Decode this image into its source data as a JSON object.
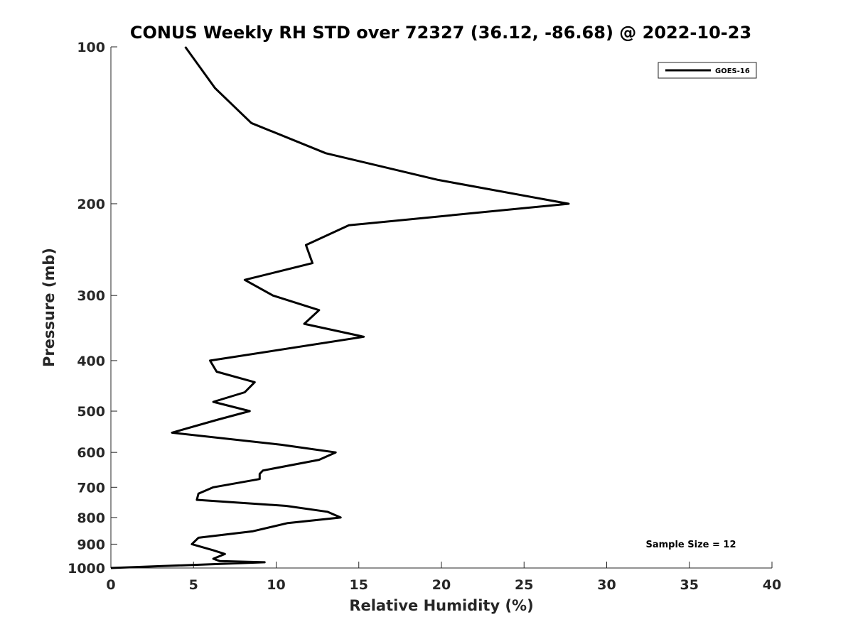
{
  "chart_data": {
    "type": "line",
    "title": "CONUS Weekly RH STD over 72327 (36.12, -86.68) @ 2022-10-23",
    "xlabel": "Relative Humidity (%)",
    "ylabel": "Pressure (mb)",
    "xlim": [
      0,
      40
    ],
    "ylim": [
      100,
      1000
    ],
    "y_scale": "log",
    "y_direction": "reversed",
    "grid": false,
    "legend_position": "top-right",
    "x_ticks": [
      0,
      5,
      10,
      15,
      20,
      25,
      30,
      35,
      40
    ],
    "x_tick_labels": [
      "0",
      "5",
      "10",
      "15",
      "20",
      "25",
      "30",
      "35",
      "40"
    ],
    "y_ticks": [
      100,
      200,
      300,
      400,
      500,
      600,
      700,
      800,
      900,
      1000
    ],
    "y_tick_labels": [
      "100",
      "200",
      "300",
      "400",
      "500",
      "600",
      "700",
      "800",
      "900",
      "1000"
    ],
    "series": [
      {
        "name": "GOES-16",
        "color": "#000000",
        "x": [
          4.5,
          6.3,
          8.5,
          13.0,
          19.8,
          27.7,
          14.4,
          11.8,
          12.2,
          8.1,
          9.8,
          12.6,
          11.7,
          15.3,
          6.0,
          6.4,
          8.7,
          8.1,
          6.2,
          8.4,
          6.4,
          3.7,
          10.3,
          13.6,
          12.6,
          9.2,
          9.0,
          9.0,
          6.2,
          5.3,
          5.2,
          10.6,
          13.1,
          13.9,
          10.7,
          8.6,
          5.3,
          4.9,
          6.2,
          6.9,
          6.2,
          6.6,
          9.3,
          0.0
        ],
        "y": [
          100,
          120,
          140,
          160,
          180,
          200,
          220,
          240,
          260,
          280,
          300,
          320,
          340,
          360,
          400,
          420,
          440,
          460,
          480,
          500,
          520,
          550,
          580,
          600,
          620,
          650,
          660,
          675,
          700,
          720,
          740,
          760,
          780,
          800,
          820,
          850,
          875,
          900,
          925,
          940,
          960,
          970,
          975,
          1000
        ]
      }
    ],
    "annotations": [
      "Sample Size = 12"
    ]
  }
}
